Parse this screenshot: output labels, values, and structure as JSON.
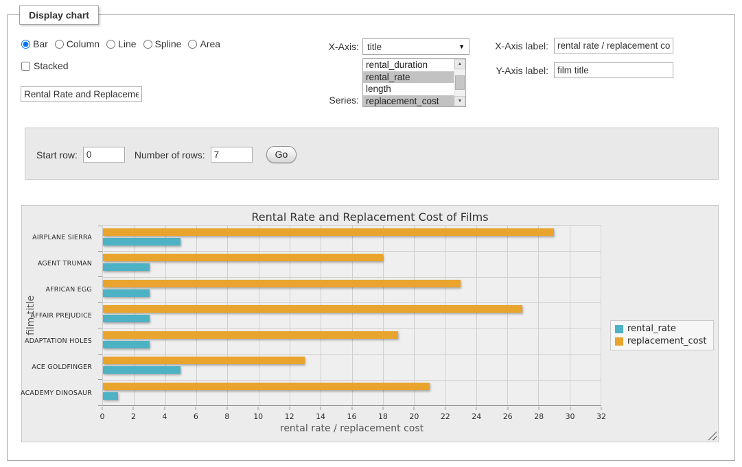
{
  "window": {
    "legend": "Display chart"
  },
  "controls": {
    "chart_types": [
      "Bar",
      "Column",
      "Line",
      "Spline",
      "Area"
    ],
    "selected_type": "Bar",
    "stacked_label": "Stacked",
    "stacked_checked": false,
    "title_value": "Rental Rate and Replacement Cost of Films",
    "xaxis_select_label": "X-Axis:",
    "xaxis_selected": "title",
    "series_label": "Series:",
    "series_options": [
      {
        "label": "rental_duration",
        "selected": false
      },
      {
        "label": "rental_rate",
        "selected": true
      },
      {
        "label": "length",
        "selected": false
      },
      {
        "label": "replacement_cost",
        "selected": true
      }
    ],
    "xaxis_label_label": "X-Axis label:",
    "xaxis_label_value": "rental rate / replacement cost",
    "yaxis_label_label": "Y-Axis label:",
    "yaxis_label_value": "film title"
  },
  "row_controls": {
    "start_row_label": "Start row:",
    "start_row_value": "0",
    "num_rows_label": "Number of rows:",
    "num_rows_value": "7",
    "go_label": "Go"
  },
  "chart_data": {
    "type": "bar",
    "title": "Rental Rate and Replacement Cost of Films",
    "categories": [
      "AIRPLANE SIERRA",
      "AGENT TRUMAN",
      "AFRICAN EGG",
      "AFFAIR PREJUDICE",
      "ADAPTATION HOLES",
      "ACE GOLDFINGER",
      "ACADEMY DINOSAUR"
    ],
    "series": [
      {
        "name": "rental_rate",
        "color": "#4DB2C4",
        "values": [
          4.99,
          2.99,
          2.99,
          2.99,
          2.99,
          4.99,
          0.99
        ]
      },
      {
        "name": "replacement_cost",
        "color": "#E9A42D",
        "values": [
          28.99,
          17.99,
          22.99,
          26.99,
          18.99,
          12.99,
          20.99
        ]
      }
    ],
    "xlabel": "rental rate / replacement cost",
    "ylabel": "film title",
    "xlim": [
      0,
      32
    ],
    "xtick_step": 2,
    "grid": true,
    "legend_position": "right"
  }
}
